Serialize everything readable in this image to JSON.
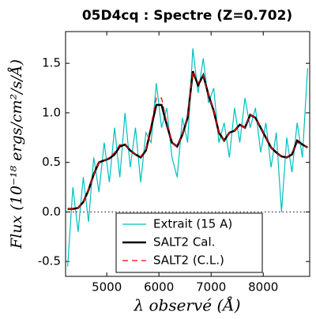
{
  "chart_data": {
    "type": "line",
    "title": "05D4cq : Spectre (Z=0.702)",
    "x_label": "λ observé (Å)",
    "y_label": "Flux (10⁻¹⁸ ergs/cm²/s/Å)",
    "x": [
      4250,
      4350,
      4450,
      4550,
      4650,
      4750,
      4850,
      4950,
      5050,
      5150,
      5250,
      5350,
      5450,
      5550,
      5650,
      5750,
      5850,
      5950,
      6050,
      6150,
      6250,
      6350,
      6450,
      6550,
      6650,
      6750,
      6850,
      6950,
      7050,
      7150,
      7250,
      7350,
      7450,
      7550,
      7650,
      7750,
      7850,
      7950,
      8050,
      8150,
      8250,
      8350,
      8450,
      8550,
      8650,
      8750,
      8850
    ],
    "series": [
      {
        "name": "Extrait (15 A)",
        "color": "#00bfbf",
        "style": "solid",
        "width": 1.2,
        "values": [
          -0.55,
          0.25,
          -0.2,
          0.35,
          -0.1,
          0.55,
          0.2,
          0.7,
          0.3,
          0.85,
          0.35,
          1.0,
          0.45,
          0.85,
          0.3,
          0.8,
          0.7,
          1.3,
          0.85,
          1.05,
          0.55,
          0.35,
          0.95,
          0.7,
          1.65,
          1.2,
          1.55,
          1.1,
          1.25,
          0.7,
          0.9,
          0.55,
          1.05,
          0.7,
          1.15,
          0.85,
          1.05,
          0.6,
          0.9,
          0.45,
          0.8,
          0.0,
          0.75,
          0.4,
          0.9,
          0.55,
          1.45
        ]
      },
      {
        "name": "SALT2 Cal.",
        "color": "#000000",
        "style": "solid",
        "width": 2.5,
        "values": [
          0.03,
          0.03,
          0.04,
          0.1,
          0.22,
          0.38,
          0.5,
          0.52,
          0.54,
          0.58,
          0.66,
          0.68,
          0.62,
          0.58,
          0.55,
          0.62,
          0.85,
          1.08,
          1.08,
          0.88,
          0.7,
          0.66,
          0.78,
          0.95,
          1.42,
          1.28,
          1.38,
          1.18,
          1.02,
          0.8,
          0.72,
          0.8,
          0.82,
          0.88,
          0.85,
          0.98,
          0.95,
          0.85,
          0.75,
          0.65,
          0.6,
          0.56,
          0.55,
          0.58,
          0.72,
          0.68,
          0.65
        ]
      },
      {
        "name": "SALT2 (C.L.)",
        "color": "#ff0000",
        "style": "dashed",
        "width": 1.2,
        "values": [
          0.03,
          0.03,
          0.04,
          0.1,
          0.22,
          0.38,
          0.5,
          0.52,
          0.55,
          0.6,
          0.68,
          0.68,
          0.62,
          0.58,
          0.56,
          0.63,
          0.88,
          1.15,
          1.15,
          0.9,
          0.7,
          0.66,
          0.78,
          0.95,
          1.42,
          1.3,
          1.38,
          1.18,
          1.02,
          0.8,
          0.72,
          0.8,
          0.82,
          0.88,
          0.85,
          0.98,
          0.95,
          0.85,
          0.75,
          0.65,
          0.6,
          0.56,
          0.55,
          0.6,
          0.7,
          0.68,
          0.65
        ]
      }
    ],
    "xlim": [
      4210,
      8890
    ],
    "xticks": [
      5000,
      6000,
      7000,
      8000
    ],
    "ylim": [
      -0.65,
      1.82
    ],
    "yticks": [
      -0.5,
      {
        "value": 0,
        "label": "0.0"
      },
      0.5,
      {
        "value": 1,
        "label": "1.0"
      },
      1.5
    ],
    "reference_line": 0,
    "legend": "lower center"
  }
}
